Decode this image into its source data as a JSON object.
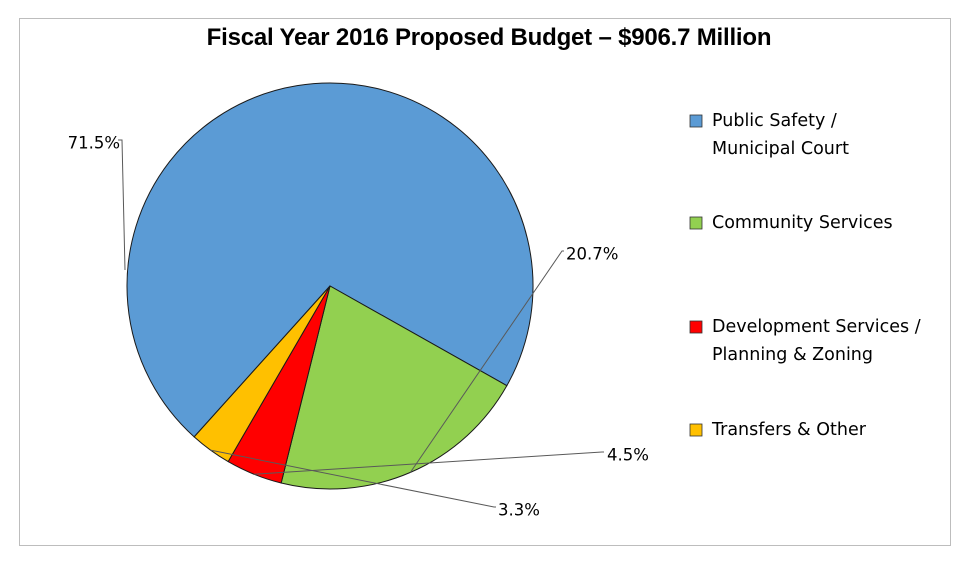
{
  "chart_data": {
    "type": "pie",
    "title": "Fiscal Year 2016 Proposed Budget – $906.7 Million",
    "legend_position": "right",
    "slices": [
      {
        "legend_lines": [
          "Public Safety /",
          "Municipal Court"
        ],
        "value": 71.5,
        "label": "71.5%",
        "color": "#5b9bd5"
      },
      {
        "legend_lines": [
          "Community Services"
        ],
        "value": 20.7,
        "label": "20.7%",
        "color": "#92d050"
      },
      {
        "legend_lines": [
          "Development Services /",
          "Planning & Zoning"
        ],
        "value": 4.5,
        "label": "4.5%",
        "color": "#ff0000"
      },
      {
        "legend_lines": [
          "Transfers & Other"
        ],
        "value": 3.3,
        "label": "3.3%",
        "color": "#ffc000"
      }
    ]
  }
}
